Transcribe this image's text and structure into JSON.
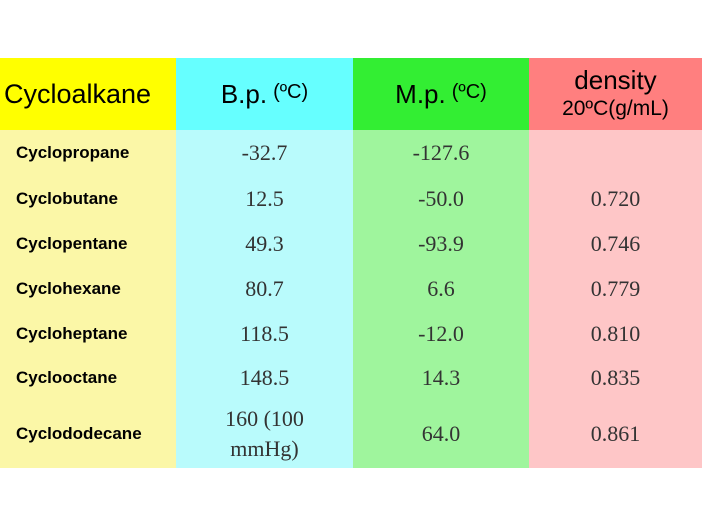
{
  "headers": {
    "name": "Cycloalkane",
    "bp": "B.p.",
    "bp_unit": "(ºC)",
    "mp": "M.p.",
    "mp_unit": "(ºC)",
    "density": "density",
    "density_unit": "20ºC(g/mL)"
  },
  "rows": [
    {
      "name": "Cyclopropane",
      "bp": "-32.7",
      "mp": "-127.6",
      "density": ""
    },
    {
      "name": "Cyclobutane",
      "bp": "12.5",
      "mp": "-50.0",
      "density": "0.720"
    },
    {
      "name": "Cyclopentane",
      "bp": "49.3",
      "mp": "-93.9",
      "density": "0.746"
    },
    {
      "name": "Cyclohexane",
      "bp": "80.7",
      "mp": "6.6",
      "density": "0.779"
    },
    {
      "name": "Cycloheptane",
      "bp": "118.5",
      "mp": "-12.0",
      "density": "0.810"
    },
    {
      "name": "Cyclooctane",
      "bp": "148.5",
      "mp": "14.3",
      "density": "0.835"
    },
    {
      "name": "Cyclododecane",
      "bp_line1": "160 (100",
      "bp_line2": "mmHg)",
      "mp": "64.0",
      "density": "0.861"
    }
  ],
  "colors": {
    "header": [
      "#ffff00",
      "#66ffff",
      "#33ee33",
      "#ff7f7f"
    ],
    "body": [
      "#fbf7a7",
      "#b9fbfc",
      "#9ff59d",
      "#fec6c7"
    ]
  }
}
